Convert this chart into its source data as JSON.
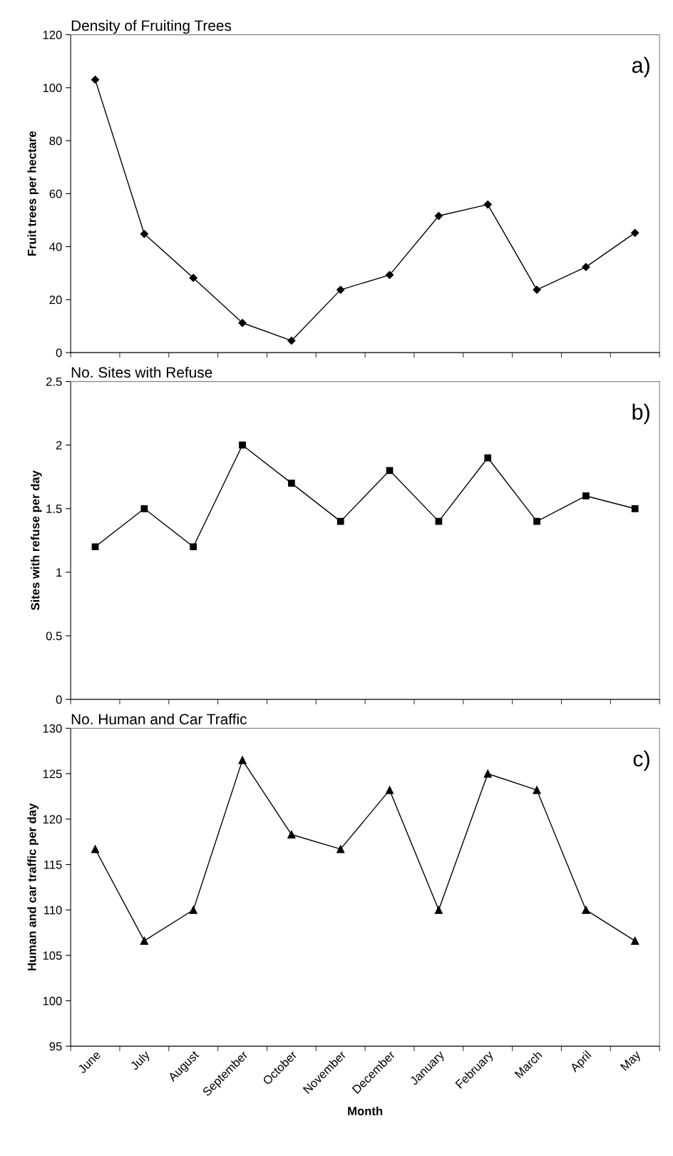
{
  "chart_data": [
    {
      "type": "line",
      "title": "Density of Fruiting Trees",
      "ylabel": "Fruit trees per hectare",
      "annotations": [
        "a)"
      ],
      "categories": [
        null,
        null,
        null,
        null,
        null,
        null,
        null,
        null,
        null,
        null,
        null,
        null
      ],
      "tick_labels": "y",
      "marker": "diamond",
      "line_style": "solid",
      "ylim": [
        0,
        120
      ],
      "yticks": [
        0,
        20,
        40,
        60,
        80,
        100,
        120
      ],
      "series": [
        {
          "color": "#000000",
          "values": [
            103,
            44.8,
            28.2,
            11.2,
            4.5,
            23.7,
            29.3,
            51.6,
            55.9,
            23.7,
            32.3,
            45.2
          ]
        }
      ]
    },
    {
      "type": "line",
      "title": "No. Sites with Refuse",
      "ylabel": "Sites with refuse per day",
      "annotations": [
        "b)"
      ],
      "categories": [
        null,
        null,
        null,
        null,
        null,
        null,
        null,
        null,
        null,
        null,
        null,
        null
      ],
      "tick_labels": "y",
      "marker": "square",
      "line_style": "solid",
      "ylim": [
        0,
        2.5
      ],
      "yticks": [
        0,
        0.5,
        1,
        1.5,
        2,
        2.5
      ],
      "series": [
        {
          "color": "#000000",
          "values": [
            1.2,
            1.5,
            1.2,
            2.0,
            1.7,
            1.4,
            1.8,
            1.4,
            1.9,
            1.4,
            1.6,
            1.5
          ]
        }
      ]
    },
    {
      "type": "line",
      "title": "No. Human and Car Traffic",
      "xlabel": "Month",
      "ylabel": "Human and car traffic per day",
      "annotations": [
        "c)"
      ],
      "categories": [
        "June",
        "July",
        "August",
        "September",
        "October",
        "November",
        "December",
        "January",
        "February",
        "March",
        "April",
        "May"
      ],
      "marker": "triangle",
      "line_style": "solid",
      "ylim": [
        95,
        130
      ],
      "yticks": [
        95,
        100,
        105,
        110,
        115,
        120,
        125,
        130
      ],
      "series": [
        {
          "color": "#000000",
          "values": [
            116.7,
            106.6,
            110,
            126.5,
            118.3,
            116.7,
            123.2,
            110,
            125,
            123.2,
            110,
            106.6
          ]
        }
      ]
    }
  ]
}
